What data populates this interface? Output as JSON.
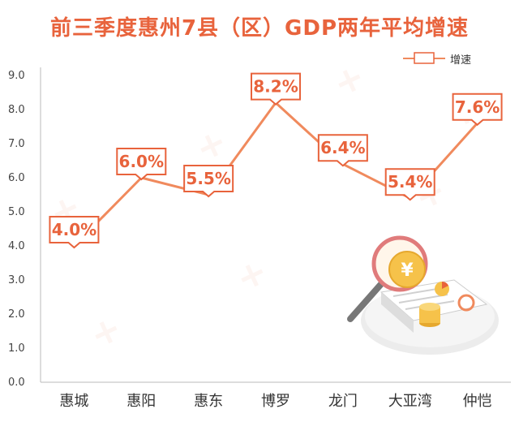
{
  "chart_data": {
    "type": "line",
    "title": "前三季度惠州7县（区）GDP两年平均增速",
    "categories": [
      "惠城",
      "惠阳",
      "惠东",
      "博罗",
      "龙门",
      "大亚湾",
      "仲恺"
    ],
    "series": [
      {
        "name": "增速",
        "values": [
          4.0,
          6.0,
          5.5,
          8.2,
          6.4,
          5.4,
          7.6
        ],
        "data_labels": [
          "4.0%",
          "6.0%",
          "5.5%",
          "8.2%",
          "6.4%",
          "5.4%",
          "7.6%"
        ]
      }
    ],
    "ylim": [
      0,
      9
    ],
    "yticks": [
      "0.0",
      "1.0",
      "2.0",
      "3.0",
      "4.0",
      "5.0",
      "6.0",
      "7.0",
      "8.0",
      "9.0"
    ],
    "legend_position": "top-right",
    "grid": false
  },
  "colors": {
    "title": "#e8633c",
    "line": "#f08a5d",
    "label_border": "#e8633c",
    "axis": "#bbbbbb"
  }
}
